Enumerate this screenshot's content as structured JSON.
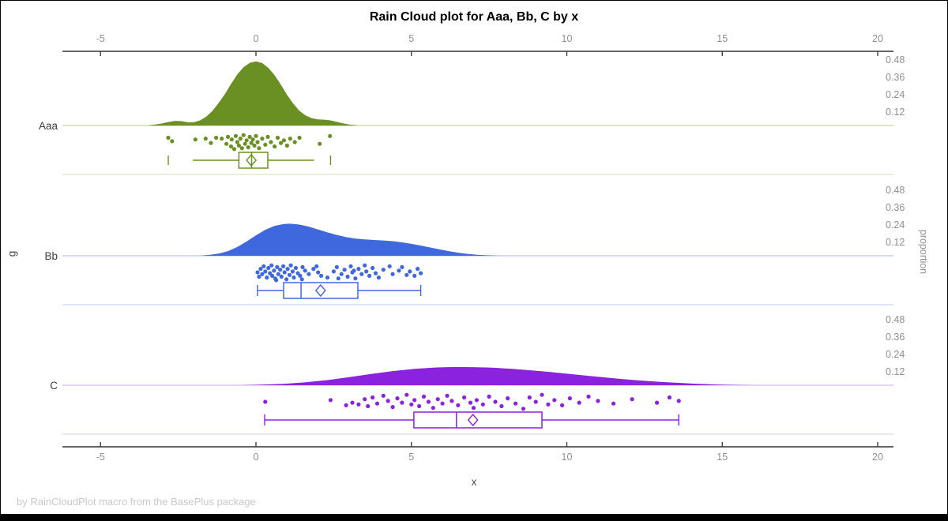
{
  "title": "Rain Cloud plot for Aaa, Bb, C by x",
  "footer": "by RainCloudPlot macro from the BasePlus package",
  "x_axis": {
    "label": "x",
    "tick_values": [
      -5,
      0,
      5,
      10,
      15,
      20
    ],
    "tick_labels": [
      "-5",
      "0",
      "5",
      "10",
      "15",
      "20"
    ],
    "range": [
      -6.2,
      20.5
    ]
  },
  "y_axis": {
    "label": "g"
  },
  "prop_axis": {
    "label": "proportion",
    "tick_labels": [
      "0.48",
      "0.36",
      "0.24",
      "0.12"
    ],
    "tick_values": [
      0.48,
      0.36,
      0.24,
      0.12
    ]
  },
  "colors": {
    "axis": "#333333",
    "tick_text": "#8f8f8f",
    "title": "#000000",
    "footer_text": "#c9c9c9"
  },
  "chart_data": {
    "type": "raincloud",
    "title": "Rain Cloud plot for Aaa, Bb, C by x",
    "xlabel": "x",
    "ylabel": "g",
    "y2label": "proportion",
    "xlim": [
      -6.2,
      20.5
    ],
    "proportion_ticks": [
      0.12,
      0.24,
      0.36,
      0.48
    ],
    "groups": [
      {
        "name": "Aaa",
        "color": "#6a9023",
        "baseline_color": "#c6d39c",
        "separator_color": "#dee6c6",
        "box": {
          "whisker_lo": -2.03,
          "q1": -0.55,
          "median": -0.14,
          "q3": 0.38,
          "whisker_hi": 1.87,
          "mean": -0.15,
          "whisker_caps": false,
          "tick_lo": -2.82,
          "tick_hi": 2.4
        },
        "density": [
          [
            -3.5,
            0
          ],
          [
            -3.2,
            0.008
          ],
          [
            -3.0,
            0.015
          ],
          [
            -2.8,
            0.025
          ],
          [
            -2.6,
            0.032
          ],
          [
            -2.4,
            0.03
          ],
          [
            -2.2,
            0.022
          ],
          [
            -2.0,
            0.022
          ],
          [
            -1.8,
            0.035
          ],
          [
            -1.6,
            0.06
          ],
          [
            -1.4,
            0.1
          ],
          [
            -1.2,
            0.155
          ],
          [
            -1.0,
            0.215
          ],
          [
            -0.8,
            0.285
          ],
          [
            -0.6,
            0.35
          ],
          [
            -0.4,
            0.4
          ],
          [
            -0.2,
            0.43
          ],
          [
            0,
            0.44
          ],
          [
            0.2,
            0.428
          ],
          [
            0.4,
            0.395
          ],
          [
            0.6,
            0.345
          ],
          [
            0.8,
            0.28
          ],
          [
            1.0,
            0.21
          ],
          [
            1.2,
            0.15
          ],
          [
            1.4,
            0.1
          ],
          [
            1.6,
            0.068
          ],
          [
            1.8,
            0.05
          ],
          [
            2.0,
            0.042
          ],
          [
            2.2,
            0.04
          ],
          [
            2.4,
            0.035
          ],
          [
            2.6,
            0.025
          ],
          [
            2.8,
            0.015
          ],
          [
            3.0,
            0.007
          ],
          [
            3.3,
            0
          ]
        ],
        "rain": [
          [
            -2.82,
            0.25
          ],
          [
            -2.7,
            0.45
          ],
          [
            -1.95,
            0.35
          ],
          [
            -1.62,
            0.3
          ],
          [
            -1.45,
            0.55
          ],
          [
            -1.28,
            0.25
          ],
          [
            -1.1,
            0.3
          ],
          [
            -0.95,
            0.6
          ],
          [
            -0.9,
            0.2
          ],
          [
            -0.8,
            0.75
          ],
          [
            -0.78,
            0.35
          ],
          [
            -0.7,
            0.9
          ],
          [
            -0.65,
            0.15
          ],
          [
            -0.6,
            0.5
          ],
          [
            -0.55,
            0.7
          ],
          [
            -0.5,
            0.3
          ],
          [
            -0.45,
            0.85
          ],
          [
            -0.4,
            0.1
          ],
          [
            -0.35,
            0.6
          ],
          [
            -0.3,
            0.4
          ],
          [
            -0.25,
            0.8
          ],
          [
            -0.2,
            0.2
          ],
          [
            -0.15,
            0.55
          ],
          [
            -0.1,
            0.35
          ],
          [
            -0.05,
            0.7
          ],
          [
            0.0,
            0.15
          ],
          [
            0.05,
            0.5
          ],
          [
            0.1,
            0.85
          ],
          [
            0.2,
            0.3
          ],
          [
            0.3,
            0.65
          ],
          [
            0.38,
            0.2
          ],
          [
            0.48,
            0.5
          ],
          [
            0.6,
            0.75
          ],
          [
            0.7,
            0.25
          ],
          [
            0.8,
            0.55
          ],
          [
            0.9,
            0.4
          ],
          [
            1.0,
            0.7
          ],
          [
            1.1,
            0.3
          ],
          [
            1.25,
            0.5
          ],
          [
            1.4,
            0.25
          ],
          [
            2.05,
            0.6
          ],
          [
            2.38,
            0.15
          ]
        ]
      },
      {
        "name": "Bb",
        "color": "#4068de",
        "baseline_color": "#b7c7f1",
        "separator_color": "#cdd8f6",
        "box": {
          "whisker_lo": 0.05,
          "q1": 0.89,
          "median": 1.45,
          "q3": 3.28,
          "whisker_hi": 5.3,
          "mean": 2.08,
          "whisker_caps": true,
          "tick_lo": null,
          "tick_hi": null
        },
        "density": [
          [
            -1.8,
            0
          ],
          [
            -1.5,
            0.006
          ],
          [
            -1.2,
            0.015
          ],
          [
            -0.9,
            0.032
          ],
          [
            -0.6,
            0.06
          ],
          [
            -0.3,
            0.098
          ],
          [
            0,
            0.14
          ],
          [
            0.3,
            0.178
          ],
          [
            0.6,
            0.205
          ],
          [
            0.9,
            0.218
          ],
          [
            1.1,
            0.22
          ],
          [
            1.4,
            0.214
          ],
          [
            1.7,
            0.2
          ],
          [
            2.0,
            0.18
          ],
          [
            2.3,
            0.16
          ],
          [
            2.6,
            0.143
          ],
          [
            2.9,
            0.128
          ],
          [
            3.2,
            0.118
          ],
          [
            3.5,
            0.112
          ],
          [
            3.8,
            0.108
          ],
          [
            4.1,
            0.105
          ],
          [
            4.4,
            0.1
          ],
          [
            4.7,
            0.092
          ],
          [
            5.0,
            0.082
          ],
          [
            5.3,
            0.07
          ],
          [
            5.6,
            0.057
          ],
          [
            5.9,
            0.044
          ],
          [
            6.2,
            0.032
          ],
          [
            6.5,
            0.021
          ],
          [
            6.8,
            0.013
          ],
          [
            7.1,
            0.007
          ],
          [
            7.4,
            0.003
          ],
          [
            7.8,
            0
          ]
        ],
        "rain": [
          [
            0.05,
            0.5
          ],
          [
            0.1,
            0.75
          ],
          [
            0.15,
            0.3
          ],
          [
            0.2,
            0.6
          ],
          [
            0.25,
            0.15
          ],
          [
            0.3,
            0.45
          ],
          [
            0.35,
            0.8
          ],
          [
            0.4,
            0.25
          ],
          [
            0.45,
            0.55
          ],
          [
            0.5,
            0.1
          ],
          [
            0.52,
            0.7
          ],
          [
            0.58,
            0.4
          ],
          [
            0.62,
            0.85
          ],
          [
            0.68,
            0.2
          ],
          [
            0.72,
            0.6
          ],
          [
            0.78,
            0.35
          ],
          [
            0.82,
            0.75
          ],
          [
            0.88,
            0.15
          ],
          [
            0.92,
            0.5
          ],
          [
            0.98,
            0.9
          ],
          [
            1.02,
            0.3
          ],
          [
            1.08,
            0.65
          ],
          [
            1.12,
            0.1
          ],
          [
            1.18,
            0.45
          ],
          [
            1.22,
            0.8
          ],
          [
            1.28,
            0.25
          ],
          [
            1.35,
            0.55
          ],
          [
            1.42,
            0.7
          ],
          [
            1.48,
            0.9
          ],
          [
            1.5,
            0.2
          ],
          [
            1.58,
            0.4
          ],
          [
            1.7,
            0.6
          ],
          [
            1.85,
            0.3
          ],
          [
            1.95,
            0.15
          ],
          [
            2.0,
            0.5
          ],
          [
            2.1,
            0.7
          ],
          [
            2.3,
            0.8
          ],
          [
            2.5,
            0.45
          ],
          [
            2.6,
            0.2
          ],
          [
            2.65,
            0.85
          ],
          [
            2.75,
            0.6
          ],
          [
            2.85,
            0.35
          ],
          [
            2.95,
            0.75
          ],
          [
            3.05,
            0.15
          ],
          [
            3.1,
            0.5
          ],
          [
            3.15,
            0.4
          ],
          [
            3.2,
            0.85
          ],
          [
            3.3,
            0.3
          ],
          [
            3.4,
            0.6
          ],
          [
            3.5,
            0.1
          ],
          [
            3.55,
            0.45
          ],
          [
            3.65,
            0.7
          ],
          [
            3.75,
            0.25
          ],
          [
            3.85,
            0.55
          ],
          [
            3.95,
            0.8
          ],
          [
            4.1,
            0.35
          ],
          [
            4.3,
            0.15
          ],
          [
            4.4,
            0.6
          ],
          [
            4.6,
            0.4
          ],
          [
            4.7,
            0.2
          ],
          [
            4.85,
            0.65
          ],
          [
            4.95,
            0.45
          ],
          [
            5.1,
            0.7
          ],
          [
            5.2,
            0.3
          ],
          [
            5.3,
            0.55
          ],
          [
            0.65,
            0.95
          ]
        ],
        "rain_note": ""
      },
      {
        "name": "C",
        "color": "#8b22dd",
        "baseline_color": "#d8bcf2",
        "separator_color": "#e5d5f7",
        "box": {
          "whisker_lo": 0.28,
          "q1": 5.08,
          "median": 6.45,
          "q3": 9.2,
          "whisker_hi": 13.6,
          "mean": 6.98,
          "whisker_caps": true,
          "tick_lo": null,
          "tick_hi": null
        },
        "density": [
          [
            -0.5,
            0
          ],
          [
            0.2,
            0.004
          ],
          [
            0.9,
            0.01
          ],
          [
            1.6,
            0.02
          ],
          [
            2.3,
            0.035
          ],
          [
            3.0,
            0.055
          ],
          [
            3.7,
            0.077
          ],
          [
            4.4,
            0.097
          ],
          [
            5.1,
            0.112
          ],
          [
            5.8,
            0.122
          ],
          [
            6.4,
            0.125
          ],
          [
            7.0,
            0.124
          ],
          [
            7.6,
            0.12
          ],
          [
            8.2,
            0.113
          ],
          [
            8.8,
            0.103
          ],
          [
            9.4,
            0.092
          ],
          [
            10.0,
            0.079
          ],
          [
            10.6,
            0.066
          ],
          [
            11.2,
            0.054
          ],
          [
            11.8,
            0.042
          ],
          [
            12.4,
            0.032
          ],
          [
            13.0,
            0.023
          ],
          [
            13.6,
            0.016
          ],
          [
            14.2,
            0.01
          ],
          [
            14.8,
            0.005
          ],
          [
            15.4,
            0.002
          ],
          [
            16.0,
            0
          ]
        ],
        "rain": [
          [
            0.3,
            0.5
          ],
          [
            2.4,
            0.4
          ],
          [
            2.9,
            0.7
          ],
          [
            3.1,
            0.55
          ],
          [
            3.3,
            0.65
          ],
          [
            3.5,
            0.35
          ],
          [
            3.6,
            0.75
          ],
          [
            3.75,
            0.25
          ],
          [
            3.9,
            0.6
          ],
          [
            4.1,
            0.15
          ],
          [
            4.25,
            0.45
          ],
          [
            4.4,
            0.8
          ],
          [
            4.55,
            0.3
          ],
          [
            4.7,
            0.55
          ],
          [
            4.85,
            0.1
          ],
          [
            5.0,
            0.65
          ],
          [
            5.1,
            0.4
          ],
          [
            5.25,
            0.75
          ],
          [
            5.4,
            0.2
          ],
          [
            5.55,
            0.5
          ],
          [
            5.7,
            0.85
          ],
          [
            5.85,
            0.35
          ],
          [
            6.0,
            0.6
          ],
          [
            6.15,
            0.15
          ],
          [
            6.3,
            0.45
          ],
          [
            6.5,
            0.7
          ],
          [
            6.7,
            0.25
          ],
          [
            6.9,
            0.55
          ],
          [
            7.0,
            0.85
          ],
          [
            7.1,
            0.4
          ],
          [
            7.3,
            0.65
          ],
          [
            7.5,
            0.2
          ],
          [
            7.7,
            0.5
          ],
          [
            7.9,
            0.75
          ],
          [
            8.1,
            0.3
          ],
          [
            8.35,
            0.6
          ],
          [
            8.6,
            0.9
          ],
          [
            8.8,
            0.25
          ],
          [
            9.0,
            0.5
          ],
          [
            9.2,
            0.1
          ],
          [
            9.4,
            0.65
          ],
          [
            9.6,
            0.4
          ],
          [
            9.85,
            0.7
          ],
          [
            10.1,
            0.3
          ],
          [
            10.4,
            0.55
          ],
          [
            10.7,
            0.2
          ],
          [
            11.0,
            0.45
          ],
          [
            11.5,
            0.6
          ],
          [
            12.1,
            0.35
          ],
          [
            12.9,
            0.55
          ],
          [
            13.3,
            0.25
          ],
          [
            13.6,
            0.45
          ]
        ]
      }
    ]
  }
}
